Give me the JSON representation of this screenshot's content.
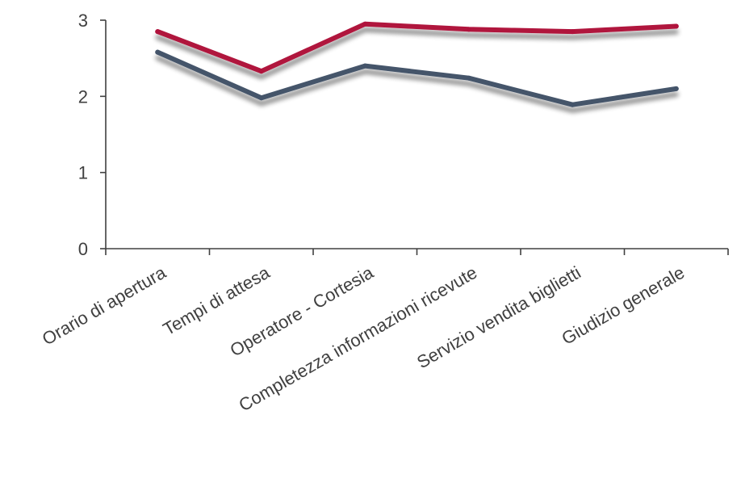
{
  "chart_data": {
    "type": "line",
    "categories": [
      "Orario di apertura",
      "Tempi di attesa",
      "Operatore - Cortesia",
      "Completezza informazioni ricevute",
      "Servizio vendita biglietti",
      "Giudizio generale"
    ],
    "series": [
      {
        "values": [
          2.85,
          2.33,
          2.95,
          2.88,
          2.85,
          2.92
        ],
        "color": "#B0123C"
      },
      {
        "values": [
          2.58,
          1.98,
          2.4,
          2.24,
          1.89,
          2.1
        ],
        "color": "#44546A"
      }
    ],
    "yticks": [
      "0",
      "1",
      "2",
      "3"
    ],
    "ylim": [
      0,
      3
    ],
    "grid": false,
    "legend": "none"
  }
}
